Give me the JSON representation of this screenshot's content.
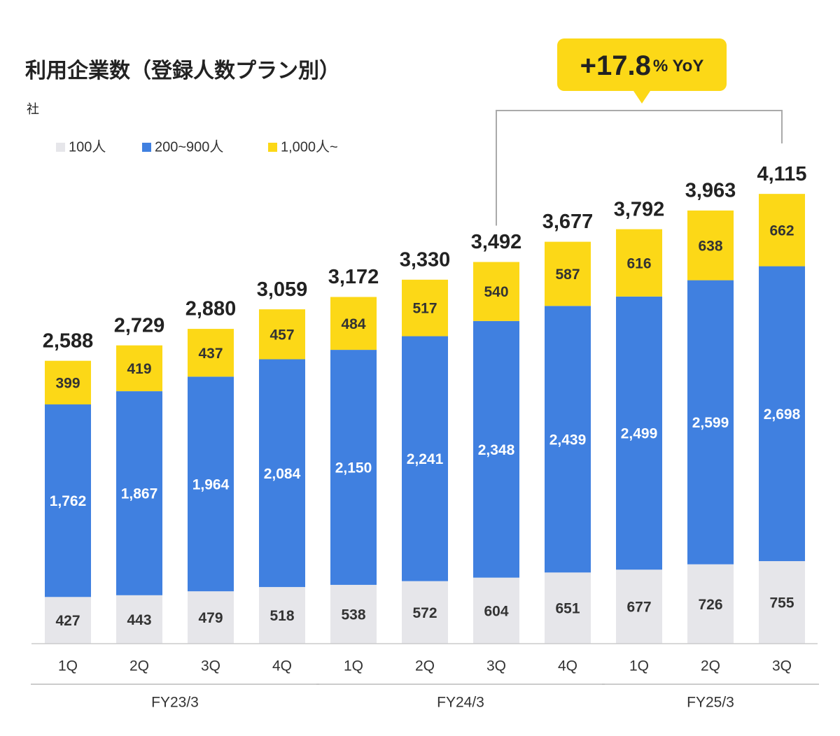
{
  "chart_data": {
    "type": "stacked-bar",
    "title": "利用企業数（登録人数プラン別）",
    "y_label": "社",
    "categories": [
      "1Q",
      "2Q",
      "3Q",
      "4Q",
      "1Q",
      "2Q",
      "3Q",
      "4Q",
      "1Q",
      "2Q",
      "3Q"
    ],
    "groups": [
      {
        "label": "FY23/3",
        "span": 4
      },
      {
        "label": "FY24/3",
        "span": 4
      },
      {
        "label": "FY25/3",
        "span": 3
      }
    ],
    "series": [
      {
        "name": "100人",
        "color": "#e6e6ea",
        "label_color": "#333333",
        "values": [
          427,
          443,
          479,
          518,
          538,
          572,
          604,
          651,
          677,
          726,
          755
        ]
      },
      {
        "name": "200~900人",
        "color": "#4080e0",
        "label_color": "#ffffff",
        "values": [
          1762,
          1867,
          1964,
          2084,
          2150,
          2241,
          2348,
          2439,
          2499,
          2599,
          2698
        ],
        "value_labels": [
          "1,762",
          "1,867",
          "1,964",
          "2,084",
          "2,150",
          "2,241",
          "2,348",
          "2,439",
          "2,499",
          "2,599",
          "2,698"
        ]
      },
      {
        "name": "1,000人~",
        "color": "#fcd817",
        "label_color": "#333333",
        "values": [
          399,
          419,
          437,
          457,
          484,
          517,
          540,
          587,
          616,
          638,
          662
        ]
      }
    ],
    "totals": {
      "values": [
        2588,
        2729,
        2880,
        3059,
        3172,
        3330,
        3492,
        3677,
        3792,
        3963,
        4115
      ],
      "value_labels": [
        "2,588",
        "2,729",
        "2,880",
        "3,059",
        "3,172",
        "3,330",
        "3,492",
        "3,677",
        "3,792",
        "3,963",
        "4,115"
      ]
    },
    "annotation": {
      "value": "+17.8",
      "unit": "% YoY",
      "color": "#fcd817"
    },
    "ylim": [
      0,
      4500
    ],
    "legend": "top-left"
  }
}
